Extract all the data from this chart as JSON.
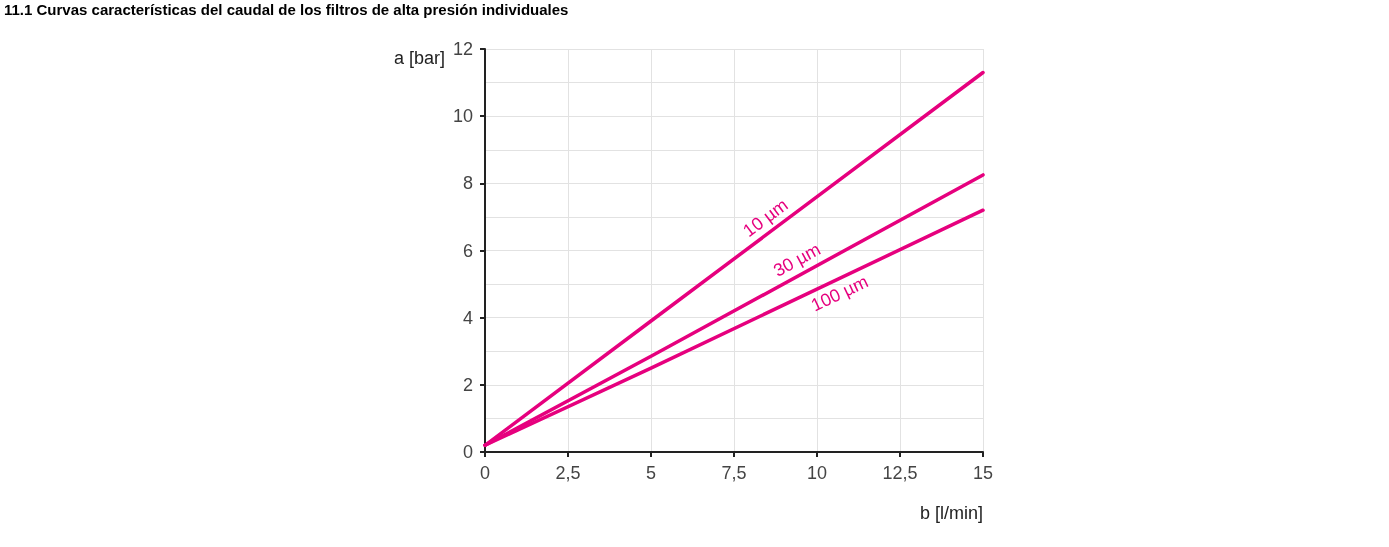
{
  "chart_data": {
    "type": "line",
    "title": "11.1 Curvas características del caudal de los filtros de alta presión individuales",
    "xlabel": "b [l/min]",
    "ylabel": "a [bar]",
    "xlim": [
      0,
      15
    ],
    "xticks": [
      0,
      {
        "value": 2.5,
        "label": "2,5"
      },
      5,
      {
        "value": 7.5,
        "label": "7,5"
      },
      10,
      {
        "value": 12.5,
        "label": "12,5"
      },
      15
    ],
    "ylim": [
      0,
      12
    ],
    "yticks": [
      0,
      2,
      4,
      6,
      8,
      10,
      12
    ],
    "grid": true,
    "marker": "none",
    "line_style": "solid",
    "series": [
      {
        "color": "#e6007e",
        "x": [
          0,
          5,
          15
        ],
        "values": [
          0.2,
          3.9,
          11.3
        ]
      },
      {
        "color": "#e6007e",
        "x": [
          0,
          5,
          15
        ],
        "values": [
          0.2,
          2.85,
          8.25
        ]
      },
      {
        "color": "#e6007e",
        "x": [
          0,
          5,
          15
        ],
        "values": [
          0.2,
          2.5,
          7.2
        ]
      }
    ],
    "annotations": [
      "10 µm",
      "30 µm",
      "100 µm"
    ]
  }
}
